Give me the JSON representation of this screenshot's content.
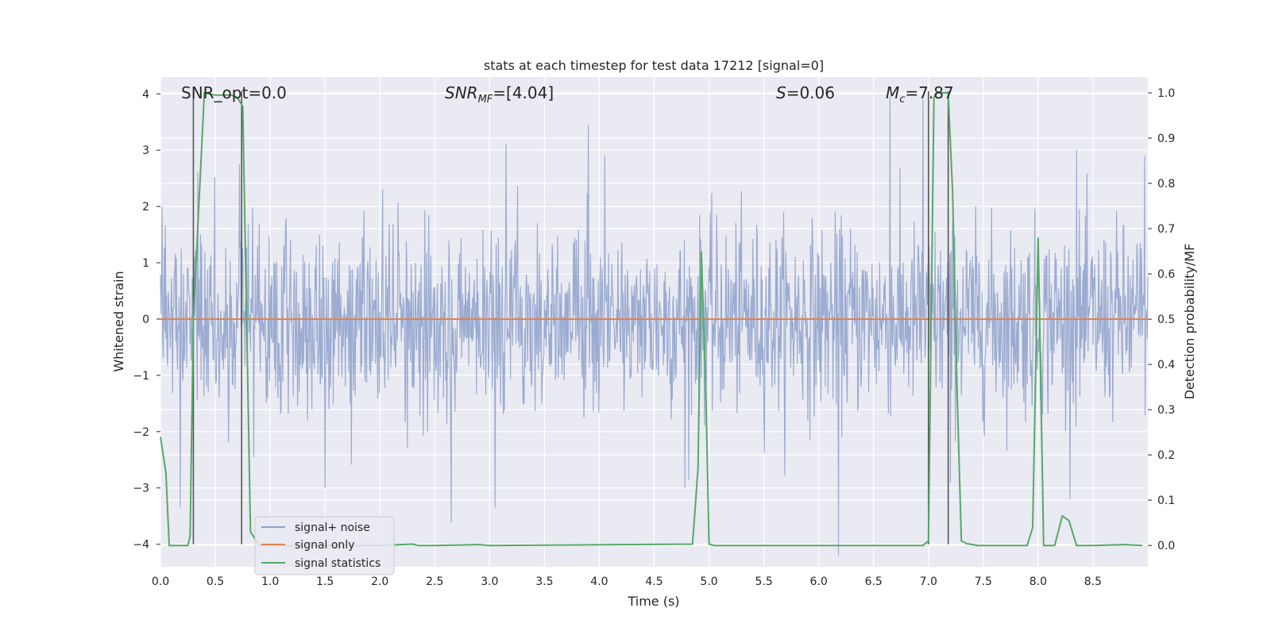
{
  "chart_data": {
    "type": "line",
    "title": "stats at each timestep for test data 17212 [signal=0]",
    "xlabel": "Time (s)",
    "ylabel": "Whitened strain",
    "ylabel_right": "Detection probability/MF",
    "xlim": [
      0,
      9
    ],
    "ylim": [
      -4.4,
      4.3
    ],
    "ylim_right": [
      -0.047,
      1.035
    ],
    "x_ticks": [
      0.0,
      0.5,
      1.0,
      1.5,
      2.0,
      2.5,
      3.0,
      3.5,
      4.0,
      4.5,
      5.0,
      5.5,
      6.0,
      6.5,
      7.0,
      7.5,
      8.0,
      8.5
    ],
    "x_tick_labels": [
      "0.0",
      "0.5",
      "1.0",
      "1.5",
      "2.0",
      "2.5",
      "3.0",
      "3.5",
      "4.0",
      "4.5",
      "5.0",
      "5.5",
      "6.0",
      "6.5",
      "7.0",
      "7.5",
      "8.0",
      "8.5"
    ],
    "y_ticks": [
      4,
      3,
      2,
      1,
      0,
      -1,
      -2,
      -3,
      -4
    ],
    "y_tick_labels": [
      "4",
      "3",
      "2",
      "1",
      "0",
      "−1",
      "−2",
      "−3",
      "−4"
    ],
    "y_right_ticks": [
      1.0,
      0.9,
      0.8,
      0.7,
      0.6,
      0.5,
      0.4,
      0.3,
      0.2,
      0.1,
      0.0
    ],
    "y_right_tick_labels": [
      "1.0",
      "0.9",
      "0.8",
      "0.7",
      "0.6",
      "0.5",
      "0.4",
      "0.3",
      "0.2",
      "0.1",
      "0.0"
    ],
    "grid": true,
    "legend_position": "lower-left",
    "annotations": {
      "snr_opt": "SNR_opt=0.0",
      "snr_mf_main": "SNR",
      "snr_mf_sub": "MF",
      "snr_mf_rest": "=[4.04]",
      "s_main": "S",
      "s_rest": "=0.06",
      "mc_main": "M",
      "mc_sub": "c",
      "mc_rest": "=7.87"
    },
    "vlines": [
      0.3,
      0.74,
      7.0,
      7.18
    ],
    "series": [
      {
        "name": "signal+ noise",
        "color": "#8da0cb",
        "noise_std": 0.82,
        "noise_extremes": [
          [
            0.18,
            -3.35
          ],
          [
            0.34,
            2.6
          ],
          [
            0.72,
            2.75
          ],
          [
            1.5,
            -3.0
          ],
          [
            2.65,
            -3.62
          ],
          [
            3.05,
            -3.35
          ],
          [
            3.9,
            3.45
          ],
          [
            4.05,
            2.9
          ],
          [
            4.78,
            -3.0
          ],
          [
            6.18,
            -4.2
          ],
          [
            6.65,
            3.95
          ],
          [
            6.95,
            3.9
          ],
          [
            7.2,
            -2.9
          ],
          [
            8.35,
            3.0
          ],
          [
            8.97,
            2.9
          ]
        ]
      },
      {
        "name": "signal only",
        "color": "#dd8452",
        "x": [
          0,
          9
        ],
        "y": [
          0,
          0
        ]
      },
      {
        "name": "signal statistics",
        "color": "#55a868",
        "x": [
          0.0,
          0.05,
          0.08,
          0.15,
          0.25,
          0.27,
          0.3,
          0.4,
          0.5,
          0.65,
          0.7,
          0.75,
          0.82,
          0.9,
          1.0,
          1.5,
          2.0,
          2.3,
          2.35,
          2.5,
          2.9,
          3.0,
          4.85,
          4.9,
          4.93,
          4.97,
          5.0,
          5.05,
          6.95,
          7.0,
          7.05,
          7.08,
          7.13,
          7.18,
          7.22,
          7.26,
          7.3,
          7.35,
          7.45,
          7.6,
          7.9,
          7.95,
          8.0,
          8.05,
          8.15,
          8.22,
          8.28,
          8.35,
          8.5,
          8.8,
          8.95
        ],
        "y": [
          0.24,
          0.16,
          0.0,
          0.0,
          0.0,
          0.02,
          0.5,
          1.0,
          0.995,
          0.995,
          0.99,
          0.97,
          0.03,
          0.0,
          0.0,
          0.0,
          0.0,
          0.003,
          0.0,
          0.0,
          0.002,
          0.0,
          0.003,
          0.17,
          0.65,
          0.35,
          0.003,
          0.0,
          0.0,
          0.01,
          0.99,
          1.0,
          1.0,
          1.0,
          0.78,
          0.35,
          0.01,
          0.004,
          0.0,
          0.0,
          0.0,
          0.04,
          0.68,
          0.0,
          0.0,
          0.065,
          0.055,
          0.0,
          0.0,
          0.002,
          0.0
        ]
      }
    ]
  }
}
